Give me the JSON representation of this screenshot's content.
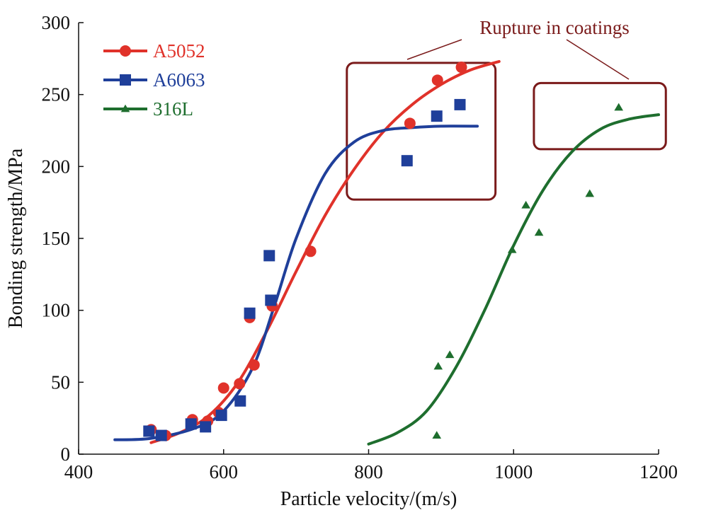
{
  "chart_data": {
    "type": "scatter",
    "title": "",
    "xlabel": "Particle velocity/(m/s)",
    "ylabel": "Bonding strength/MPa",
    "xlim": [
      400,
      1200
    ],
    "ylim": [
      0,
      300
    ],
    "xticks": [
      400,
      600,
      800,
      1000,
      1200
    ],
    "yticks": [
      0,
      50,
      100,
      150,
      200,
      250,
      300
    ],
    "grid": false,
    "legend_position": "top-left",
    "series": [
      {
        "name": "A5052",
        "color": "#e0322a",
        "marker": "circle",
        "points": [
          [
            500,
            17
          ],
          [
            520,
            13
          ],
          [
            557,
            24
          ],
          [
            578,
            23
          ],
          [
            593,
            29
          ],
          [
            600,
            46
          ],
          [
            622,
            49
          ],
          [
            636,
            95
          ],
          [
            642,
            62
          ],
          [
            667,
            103
          ],
          [
            720,
            141
          ],
          [
            857,
            230
          ],
          [
            895,
            260
          ],
          [
            928,
            269
          ]
        ],
        "fit": [
          [
            500,
            8
          ],
          [
            540,
            15
          ],
          [
            580,
            27
          ],
          [
            620,
            50
          ],
          [
            660,
            86
          ],
          [
            700,
            127
          ],
          [
            740,
            166
          ],
          [
            780,
            198
          ],
          [
            820,
            224
          ],
          [
            860,
            243
          ],
          [
            900,
            257
          ],
          [
            940,
            267
          ],
          [
            980,
            273
          ]
        ]
      },
      {
        "name": "A6063",
        "color": "#1f3f9a",
        "marker": "square",
        "points": [
          [
            497,
            16
          ],
          [
            514,
            13
          ],
          [
            555,
            21
          ],
          [
            575,
            19
          ],
          [
            597,
            27
          ],
          [
            623,
            37
          ],
          [
            636,
            98
          ],
          [
            663,
            138
          ],
          [
            665,
            107
          ],
          [
            853,
            204
          ],
          [
            894,
            235
          ],
          [
            926,
            243
          ]
        ],
        "fit": [
          [
            450,
            10
          ],
          [
            500,
            11
          ],
          [
            560,
            18
          ],
          [
            600,
            30
          ],
          [
            640,
            60
          ],
          [
            670,
            103
          ],
          [
            700,
            150
          ],
          [
            740,
            195
          ],
          [
            780,
            217
          ],
          [
            820,
            225
          ],
          [
            860,
            227
          ],
          [
            900,
            228
          ],
          [
            950,
            228
          ]
        ]
      },
      {
        "name": "316L",
        "color": "#1e6e2e",
        "marker": "triangle",
        "points": [
          [
            894,
            13
          ],
          [
            896,
            61
          ],
          [
            912,
            69
          ],
          [
            998,
            142
          ],
          [
            1017,
            173
          ],
          [
            1035,
            154
          ],
          [
            1105,
            181
          ],
          [
            1145,
            241
          ]
        ],
        "fit": [
          [
            800,
            7
          ],
          [
            840,
            15
          ],
          [
            880,
            30
          ],
          [
            920,
            60
          ],
          [
            960,
            100
          ],
          [
            1000,
            145
          ],
          [
            1040,
            183
          ],
          [
            1080,
            210
          ],
          [
            1120,
            226
          ],
          [
            1160,
            233
          ],
          [
            1200,
            236
          ]
        ]
      }
    ],
    "annotation": {
      "text": "Rupture in coatings",
      "regions": [
        {
          "xlim": [
            770,
            975
          ],
          "ylim": [
            177,
            272
          ]
        },
        {
          "xlim": [
            1028,
            1210
          ],
          "ylim": [
            212,
            258
          ]
        }
      ]
    }
  }
}
